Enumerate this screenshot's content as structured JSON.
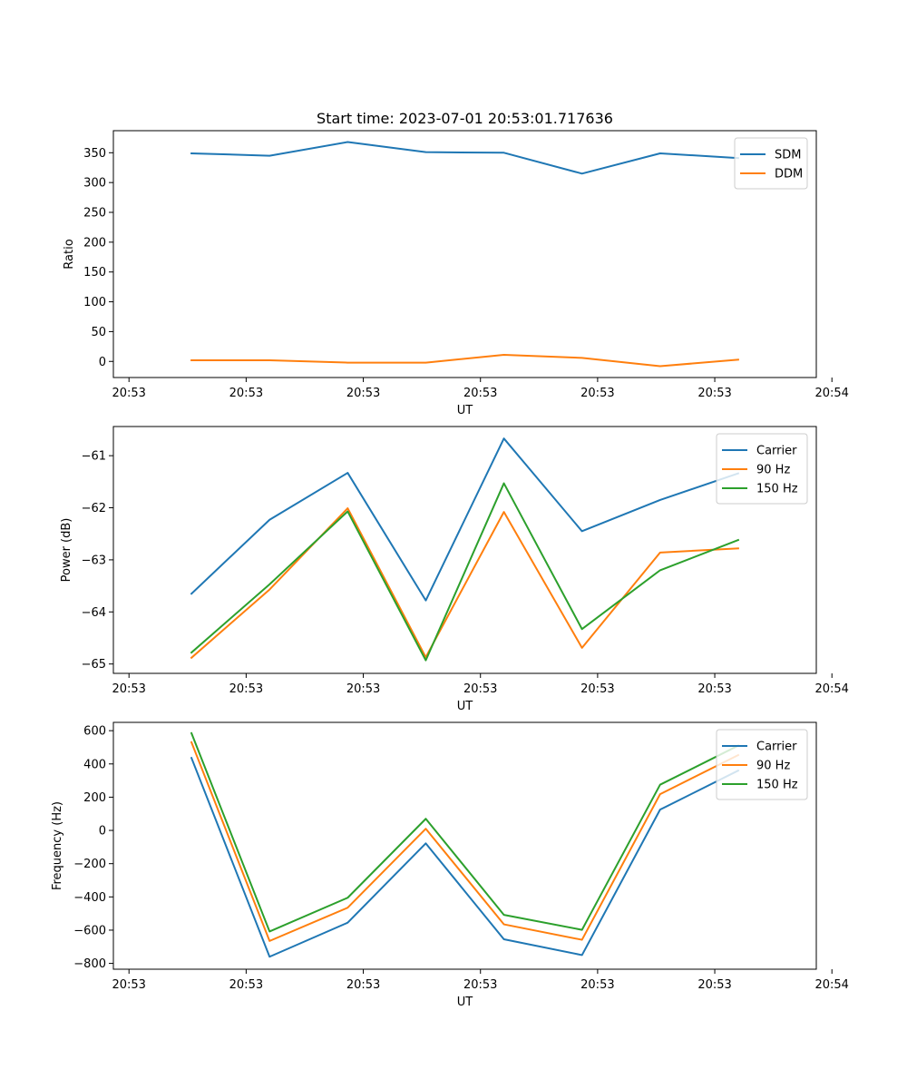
{
  "figure": {
    "title": "Start time: 2023-07-01 20:53:01.717636"
  },
  "colors": {
    "blue": "#1f77b4",
    "orange": "#ff7f0e",
    "green": "#2ca02c"
  },
  "chart_data": [
    {
      "type": "line",
      "title": "Start time: 2023-07-01 20:53:01.717636",
      "xlabel": "UT",
      "ylabel": "Ratio",
      "x": [
        1,
        2,
        3,
        4,
        5,
        6,
        7,
        8
      ],
      "xlim": [
        0,
        9
      ],
      "x_ticks": [
        0.2,
        1.7,
        3.2,
        4.7,
        6.2,
        7.7,
        9.2
      ],
      "x_tick_labels": [
        "20:53",
        "20:53",
        "20:53",
        "20:53",
        "20:53",
        "20:53",
        "20:54"
      ],
      "ylim": [
        -27,
        387
      ],
      "y_ticks": [
        0,
        50,
        100,
        150,
        200,
        250,
        300,
        350
      ],
      "y_tick_labels": [
        "0",
        "50",
        "100",
        "150",
        "200",
        "250",
        "300",
        "350"
      ],
      "legend": "upper right",
      "series": [
        {
          "name": "SDM",
          "color": "#1f77b4",
          "values": [
            349,
            345,
            368,
            351,
            350,
            315,
            349,
            341
          ]
        },
        {
          "name": "DDM",
          "color": "#ff7f0e",
          "values": [
            2,
            2,
            -2,
            -2,
            11,
            6,
            -8,
            3
          ]
        }
      ]
    },
    {
      "type": "line",
      "title": "",
      "xlabel": "UT",
      "ylabel": "Power (dB)",
      "x": [
        1,
        2,
        3,
        4,
        5,
        6,
        7,
        8
      ],
      "xlim": [
        0,
        9
      ],
      "x_ticks": [
        0.2,
        1.7,
        3.2,
        4.7,
        6.2,
        7.7,
        9.2
      ],
      "x_tick_labels": [
        "20:53",
        "20:53",
        "20:53",
        "20:53",
        "20:53",
        "20:53",
        "20:54"
      ],
      "ylim": [
        -65.18,
        -60.44
      ],
      "y_ticks": [
        -65,
        -64,
        -63,
        -62,
        -61
      ],
      "y_tick_labels": [
        "−65",
        "−64",
        "−63",
        "−62",
        "−61"
      ],
      "legend": "upper right",
      "series": [
        {
          "name": "Carrier",
          "color": "#1f77b4",
          "values": [
            -63.65,
            -62.23,
            -61.33,
            -63.78,
            -60.67,
            -62.45,
            -61.85,
            -61.34
          ]
        },
        {
          "name": "90 Hz",
          "color": "#ff7f0e",
          "values": [
            -64.88,
            -63.57,
            -62.01,
            -64.87,
            -62.08,
            -64.69,
            -62.86,
            -62.78
          ]
        },
        {
          "name": "150 Hz",
          "color": "#2ca02c",
          "values": [
            -64.78,
            -63.47,
            -62.07,
            -64.93,
            -61.53,
            -64.33,
            -63.2,
            -62.62
          ]
        }
      ]
    },
    {
      "type": "line",
      "title": "",
      "xlabel": "UT",
      "ylabel": "Frequency (Hz)",
      "x": [
        1,
        2,
        3,
        4,
        5,
        6,
        7,
        8
      ],
      "xlim": [
        0,
        9
      ],
      "x_ticks": [
        0.2,
        1.7,
        3.2,
        4.7,
        6.2,
        7.7,
        9.2
      ],
      "x_tick_labels": [
        "20:53",
        "20:53",
        "20:53",
        "20:53",
        "20:53",
        "20:53",
        "20:54"
      ],
      "ylim": [
        -835,
        650
      ],
      "y_ticks": [
        -800,
        -600,
        -400,
        -200,
        0,
        200,
        400,
        600
      ],
      "y_tick_labels": [
        "−800",
        "−600",
        "−400",
        "−200",
        "0",
        "200",
        "400",
        "600"
      ],
      "legend": "upper right",
      "series": [
        {
          "name": "Carrier",
          "color": "#1f77b4",
          "values": [
            436,
            -760,
            -555,
            -78,
            -655,
            -750,
            125,
            360
          ]
        },
        {
          "name": "90 Hz",
          "color": "#ff7f0e",
          "values": [
            530,
            -665,
            -465,
            10,
            -565,
            -658,
            218,
            453
          ]
        },
        {
          "name": "150 Hz",
          "color": "#2ca02c",
          "values": [
            585,
            -608,
            -405,
            70,
            -508,
            -598,
            275,
            510
          ]
        }
      ]
    }
  ]
}
